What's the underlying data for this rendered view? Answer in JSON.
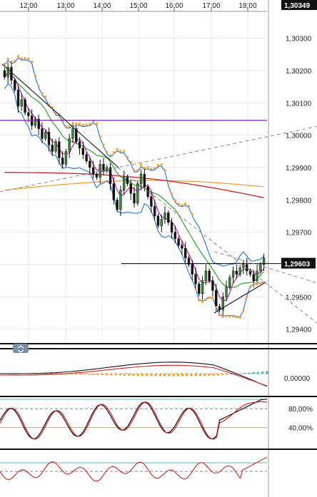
{
  "chart_data": [
    {
      "type": "candlestick",
      "title": "",
      "x_ticks": [
        "12:00",
        "13:00",
        "14:00",
        "15:00",
        "16:00",
        "17:00",
        "18:00"
      ],
      "y_ticks": [
        "1,30300",
        "1,30200",
        "1,30100",
        "1,30000",
        "1,29900",
        "1,29800",
        "1,29700",
        "1,29600",
        "1,29500",
        "1,29400"
      ],
      "y_tick_values": [
        1.303,
        1.302,
        1.301,
        1.3,
        1.299,
        1.298,
        1.297,
        1.296,
        1.295,
        1.294
      ],
      "ylim": [
        1.29355,
        1.30383
      ],
      "grid": true,
      "top_price_label": "1,30349",
      "current_price_label": "1,29603",
      "current_price": 1.29603,
      "colors": {
        "up": "#3a8a3a",
        "down": "#111111",
        "bollinger": "#1f6fd1",
        "ema_fast": "#c01fb0",
        "sma_mid": "#2aa52a",
        "sma_slow_red": "#d02020",
        "sma_slow_orange": "#f0a030",
        "parabolic_sar": "#f5a030",
        "resistance": "#7a1fa0",
        "trendline": "#222222",
        "dashed_trend": "#888888",
        "support": "#2a7fbf"
      },
      "candles_close": [
        1.3018,
        1.3021,
        1.3017,
        1.3014,
        1.3009,
        1.3011,
        1.3007,
        1.3006,
        1.3003,
        1.3005,
        1.3002,
        1.2999,
        1.3001,
        1.2997,
        1.2995,
        1.2998,
        1.2993,
        1.2991,
        1.2995,
        1.2999,
        1.3002,
        1.2998,
        1.2996,
        1.2994,
        1.2992,
        1.299,
        1.2988,
        1.2987,
        1.2991,
        1.2989,
        1.299,
        1.2985,
        1.298,
        1.2977,
        1.2983,
        1.2987,
        1.2985,
        1.2982,
        1.2979,
        1.2985,
        1.2988,
        1.2984,
        1.2981,
        1.2978,
        1.2975,
        1.2972,
        1.2974,
        1.2976,
        1.2973,
        1.297,
        1.2968,
        1.2966,
        1.2965,
        1.2962,
        1.296,
        1.2957,
        1.2954,
        1.2951,
        1.2955,
        1.2958,
        1.2955,
        1.2952,
        1.2947,
        1.2946,
        1.295,
        1.2953,
        1.2956,
        1.2958,
        1.2957,
        1.2959,
        1.296,
        1.2958,
        1.2957,
        1.2955,
        1.2958,
        1.296,
        1.2962
      ],
      "resistance_level": 1.30046,
      "support_level": 1.29355
    },
    {
      "type": "bar",
      "title": "",
      "y_ticks": [
        "0,00000"
      ],
      "ylim": [
        -1,
        1
      ]
    },
    {
      "type": "line",
      "title": "",
      "y_ticks": [
        "80,00%",
        "40,00%"
      ],
      "ylim": [
        0,
        100
      ]
    },
    {
      "type": "line",
      "title": "",
      "y_ticks": [],
      "ylim": [
        -1,
        1
      ]
    }
  ],
  "ui": {
    "scroll_handle_icon": "collapse-expand-icon"
  }
}
